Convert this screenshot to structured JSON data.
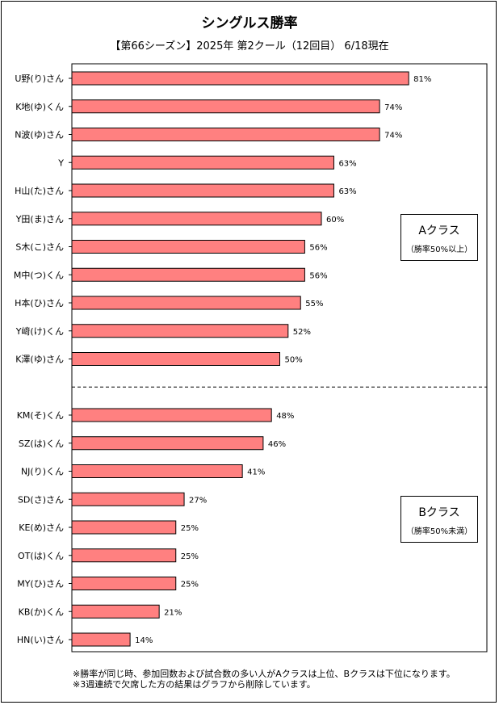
{
  "chart_data": {
    "type": "bar",
    "orientation": "horizontal",
    "title": "シングルス勝率",
    "subtitle": "【第66シーズン】2025年 第2クール（12回目） 6/18現在",
    "categories": [
      "U野(り)さん",
      "K地(ゆ)くん",
      "N波(ゆ)さん",
      "Y",
      "H山(た)さん",
      "Y田(ま)さん",
      "S木(こ)さん",
      "M中(つ)くん",
      "H本(ひ)さん",
      "Y﨑(け)くん",
      "K澤(ゆ)さん",
      "KM(そ)くん",
      "SZ(は)くん",
      "NJ(り)くん",
      "SD(さ)さん",
      "KE(め)さん",
      "OT(は)くん",
      "MY(ひ)さん",
      "KB(か)くん",
      "HN(い)さん"
    ],
    "values": [
      81,
      74,
      74,
      63,
      63,
      60,
      56,
      56,
      55,
      52,
      50,
      48,
      46,
      41,
      27,
      25,
      25,
      25,
      21,
      14
    ],
    "value_labels": [
      "81%",
      "74%",
      "74%",
      "63%",
      "63%",
      "60%",
      "56%",
      "56%",
      "55%",
      "52%",
      "50%",
      "48%",
      "46%",
      "41%",
      "27%",
      "25%",
      "25%",
      "25%",
      "21%",
      "14%"
    ],
    "xlim": [
      0,
      100
    ],
    "grid": false,
    "bar_color": "#ff8080",
    "divider_after_index": 10,
    "groups": [
      {
        "name": "Aクラス",
        "note": "（勝率50%以上）"
      },
      {
        "name": "Bクラス",
        "note": "（勝率50%未満）"
      }
    ]
  },
  "footnotes": [
    "※勝率が同じ時、参加回数および試合数の多い人がAクラスは上位、Bクラスは下位になります。",
    "※3週連続で欠席した方の結果はグラフから削除しています。"
  ]
}
